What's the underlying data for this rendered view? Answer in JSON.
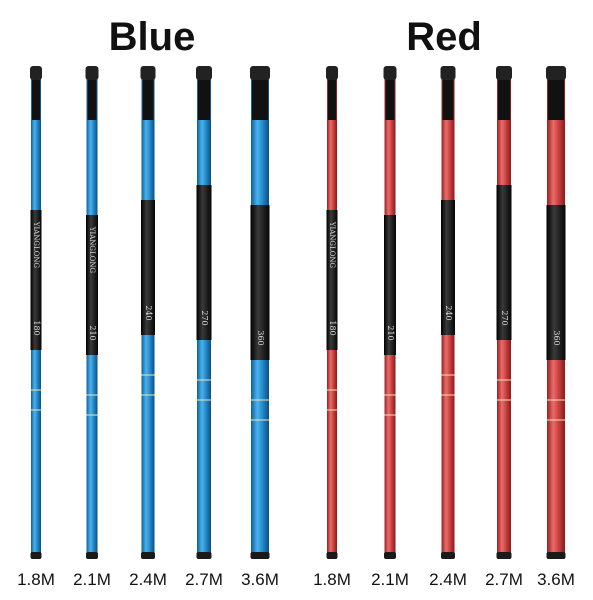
{
  "groups": [
    {
      "title": "Blue",
      "rods": [
        {
          "label": "1.8M",
          "brand": "YIANGLONG",
          "marking": "180"
        },
        {
          "label": "2.1M",
          "brand": "YIANGLONG",
          "marking": "210"
        },
        {
          "label": "2.4M",
          "marking": "240"
        },
        {
          "label": "2.7M",
          "marking": "270"
        },
        {
          "label": "3.6M",
          "marking": "360"
        }
      ]
    },
    {
      "title": "Red",
      "rods": [
        {
          "label": "1.8M",
          "brand": "YIANGLONG",
          "marking": "180"
        },
        {
          "label": "2.1M",
          "marking": "210"
        },
        {
          "label": "2.4M",
          "marking": "240"
        },
        {
          "label": "2.7M",
          "marking": "270"
        },
        {
          "label": "3.6M",
          "marking": "360"
        }
      ]
    }
  ]
}
